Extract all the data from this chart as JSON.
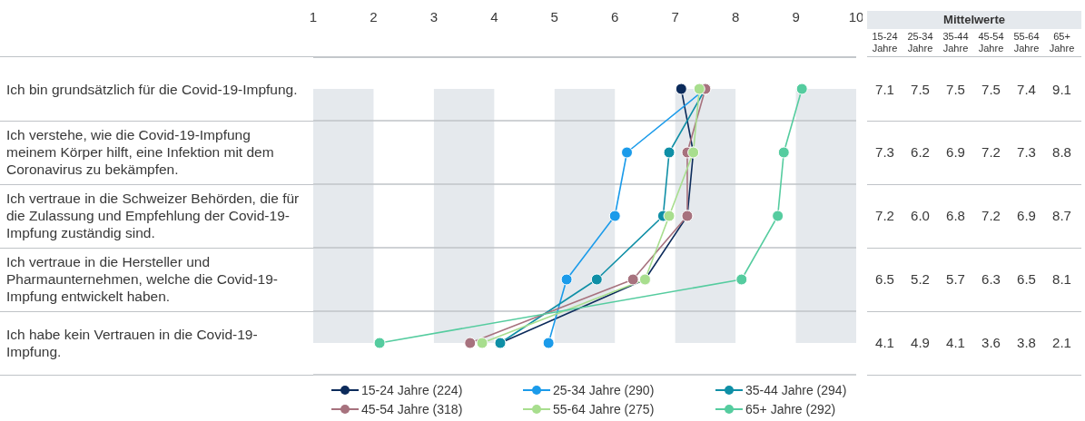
{
  "chart_data": {
    "type": "line",
    "orientation": "horizontal",
    "categories": [
      "Ich bin grundsätzlich für die Covid-19-Impfung.",
      "Ich verstehe, wie die Covid-19-Impfung meinem Körper hilft, eine Infektion mit dem Coronavirus zu bekämpfen.",
      "Ich vertraue in die Schweizer Behörden, die für die Zulassung und Empfehlung der Covid-19-Impfung zuständig sind.",
      "Ich vertraue in die Hersteller und Pharmaunternehmen, welche die Covid-19-Impfung entwickelt haben.",
      "Ich habe kein Vertrauen in die Covid-19-Impfung."
    ],
    "series": [
      {
        "name": "15-24 Jahre (224)",
        "color": "#0c2b5b",
        "values": [
          7.1,
          7.3,
          7.2,
          6.5,
          4.1
        ],
        "value_labels": [
          "7.1",
          "7.3",
          "7.2",
          "6.5",
          "4.1"
        ]
      },
      {
        "name": "25-34 Jahre (290)",
        "color": "#1b9bea",
        "values": [
          7.5,
          6.2,
          6.0,
          5.2,
          4.9
        ],
        "value_labels": [
          "7.5",
          "6.2",
          "6.0",
          "5.2",
          "4.9"
        ]
      },
      {
        "name": "35-44 Jahre (294)",
        "color": "#0f8fa6",
        "values": [
          7.5,
          6.9,
          6.8,
          5.7,
          4.1
        ],
        "value_labels": [
          "7.5",
          "6.9",
          "6.8",
          "5.7",
          "4.1"
        ]
      },
      {
        "name": "45-54 Jahre (318)",
        "color": "#a7727e",
        "values": [
          7.5,
          7.2,
          7.2,
          6.3,
          3.6
        ],
        "value_labels": [
          "7.5",
          "7.2",
          "7.2",
          "6.3",
          "3.6"
        ]
      },
      {
        "name": "55-64 Jahre (275)",
        "color": "#a8de8e",
        "values": [
          7.4,
          7.3,
          6.9,
          6.5,
          3.8
        ],
        "value_labels": [
          "7.4",
          "7.3",
          "6.9",
          "6.5",
          "3.8"
        ]
      },
      {
        "name": "65+ Jahre (292)",
        "color": "#55cc9f",
        "values": [
          9.1,
          8.8,
          8.7,
          8.1,
          2.1
        ],
        "value_labels": [
          "9.1",
          "8.8",
          "8.7",
          "8.1",
          "2.1"
        ]
      }
    ],
    "xlim": [
      1,
      10
    ],
    "xticks": [
      1,
      2,
      3,
      4,
      5,
      6,
      7,
      8,
      9,
      10
    ],
    "bands": [
      {
        "axis": "x",
        "from": 1,
        "to": 2,
        "color": "#e5e9ed"
      },
      {
        "axis": "x",
        "from": 3,
        "to": 4,
        "color": "#e5e9ed"
      },
      {
        "axis": "x",
        "from": 5,
        "to": 6,
        "color": "#e5e9ed"
      },
      {
        "axis": "x",
        "from": 7,
        "to": 8,
        "color": "#e5e9ed"
      },
      {
        "axis": "x",
        "from": 9,
        "to": 10,
        "color": "#e5e9ed"
      }
    ],
    "grid": "y",
    "legend": "bottom",
    "marker": "circle",
    "line_style": "solid",
    "annotations": [
      "Mittelwerte",
      "15-24 Jahre",
      "25-34 Jahre",
      "35-44 Jahre",
      "45-54 Jahre",
      "55-64 Jahre",
      "65+ Jahre"
    ]
  }
}
